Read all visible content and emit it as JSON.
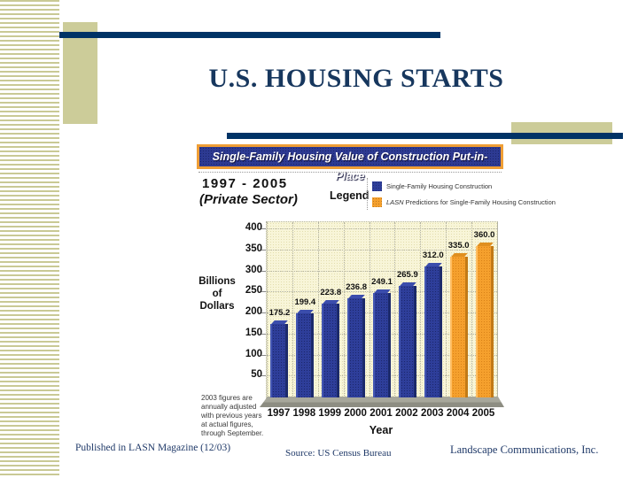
{
  "slide": {
    "title": "U.S. HOUSING STARTS",
    "footer_left": "Published in LASN Magazine (12/03)",
    "footer_center": "Source: US Census Bureau",
    "footer_right": "Landscape Communications, Inc."
  },
  "chart": {
    "banner": "Single-Family Housing Value of Construction Put-in-Place",
    "period": "1997 - 2005",
    "sector": "(Private Sector)",
    "legend_title": "Legend",
    "legend": [
      {
        "swatch_color": "#2e3e9a",
        "italic_prefix": "",
        "label": "Single-Family Housing Construction"
      },
      {
        "swatch_color": "#f5a02d",
        "italic_prefix": "LASN",
        "label": " Predictions for Single-Family Housing Construction"
      }
    ],
    "ylabel_lines": [
      "Billions",
      "of",
      "Dollars"
    ],
    "footnote_lines": [
      "2003 figures are",
      "annually adjusted",
      "with previous years",
      "at actual figures,",
      "through September."
    ]
  },
  "chart_data": {
    "type": "bar",
    "title": "Single-Family Housing Value of Construction Put-in-Place",
    "subtitle": "1997 - 2005 (Private Sector)",
    "categories": [
      "1997",
      "1998",
      "1999",
      "2000",
      "2001",
      "2002",
      "2003",
      "2004",
      "2005"
    ],
    "series": [
      {
        "name": "Single-Family Housing Construction",
        "color": "#2e3e9a",
        "values": [
          175.2,
          199.4,
          223.8,
          236.8,
          249.1,
          265.9,
          312.0,
          null,
          null
        ]
      },
      {
        "name": "LASN Predictions for Single-Family Housing Construction",
        "color": "#f5a02d",
        "values": [
          null,
          null,
          null,
          null,
          null,
          null,
          null,
          335.0,
          360.0
        ]
      }
    ],
    "xlabel": "Year",
    "ylabel": "Billions of Dollars",
    "ylim": [
      0,
      400
    ],
    "ytick_step": 50,
    "grid": true,
    "legend_position": "top",
    "value_labels": true
  }
}
